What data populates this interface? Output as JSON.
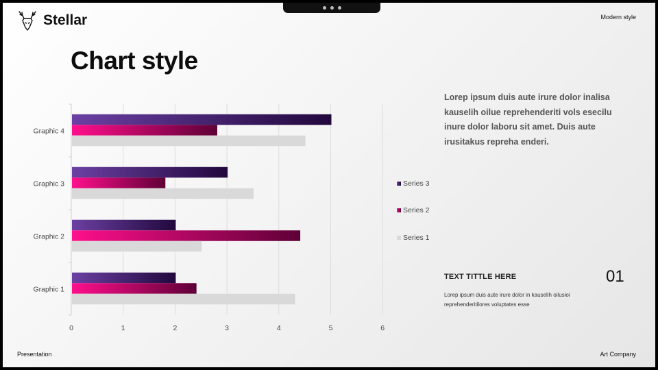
{
  "header": {
    "brand": "Stellar",
    "top_right": "Modern style",
    "logo_icon": "deer-head-icon"
  },
  "title": "Chart style",
  "body_text": "Lorep  ipsum duis aute irure dolor inalisa kauselih oilue reprehenderiti vols esecilu inure dolor laboru sit amet. Duis aute irusitakus repreha enderi.",
  "sub": {
    "title": "TEXT TITTLE HERE",
    "number": "01",
    "text": "Lorep  ipsum duis aute irure dolor in kauselih oilusioi reprehenderitilores voluptates esse"
  },
  "footer": {
    "left": "Presentation",
    "right": "Art Company"
  },
  "chart_data": {
    "type": "bar",
    "orientation": "horizontal",
    "categories": [
      "Graphic 1",
      "Graphic 2",
      "Graphic 3",
      "Graphic 4"
    ],
    "series": [
      {
        "name": "Series 1",
        "values": [
          4.3,
          2.5,
          3.5,
          4.5
        ],
        "color": "#d9d9d9"
      },
      {
        "name": "Series 2",
        "values": [
          2.4,
          4.4,
          1.8,
          2.8
        ],
        "color_start": "#ff0f8c",
        "color_end": "#5e0036"
      },
      {
        "name": "Series 3",
        "values": [
          2.0,
          2.0,
          3.0,
          5.0
        ],
        "color_start": "#6b40a3",
        "color_end": "#22083d"
      }
    ],
    "xlim": [
      0,
      6
    ],
    "x_ticks": [
      "0",
      "1",
      "2",
      "3",
      "4",
      "5",
      "6"
    ],
    "grid": true,
    "legend_position": "right",
    "legend_order": [
      "Series 3",
      "Series 2",
      "Series 1"
    ]
  }
}
